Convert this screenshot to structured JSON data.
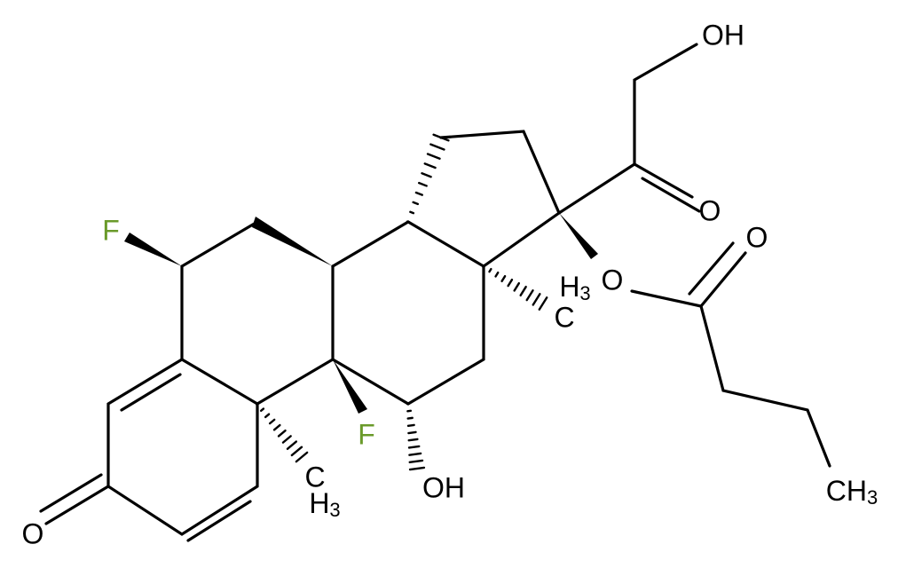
{
  "atoms": [
    {
      "label": "F"
    },
    {
      "label": "F"
    },
    {
      "label": "OH"
    },
    {
      "label": "OH"
    },
    {
      "label": "O"
    },
    {
      "label": "O"
    },
    {
      "label": "O"
    },
    {
      "label": "O"
    },
    {
      "label": "C"
    },
    {
      "label": "H",
      "sub": "3"
    },
    {
      "label": "H",
      "sub": "3"
    },
    {
      "label": "C"
    },
    {
      "label": "CH",
      "sub": "3"
    }
  ]
}
